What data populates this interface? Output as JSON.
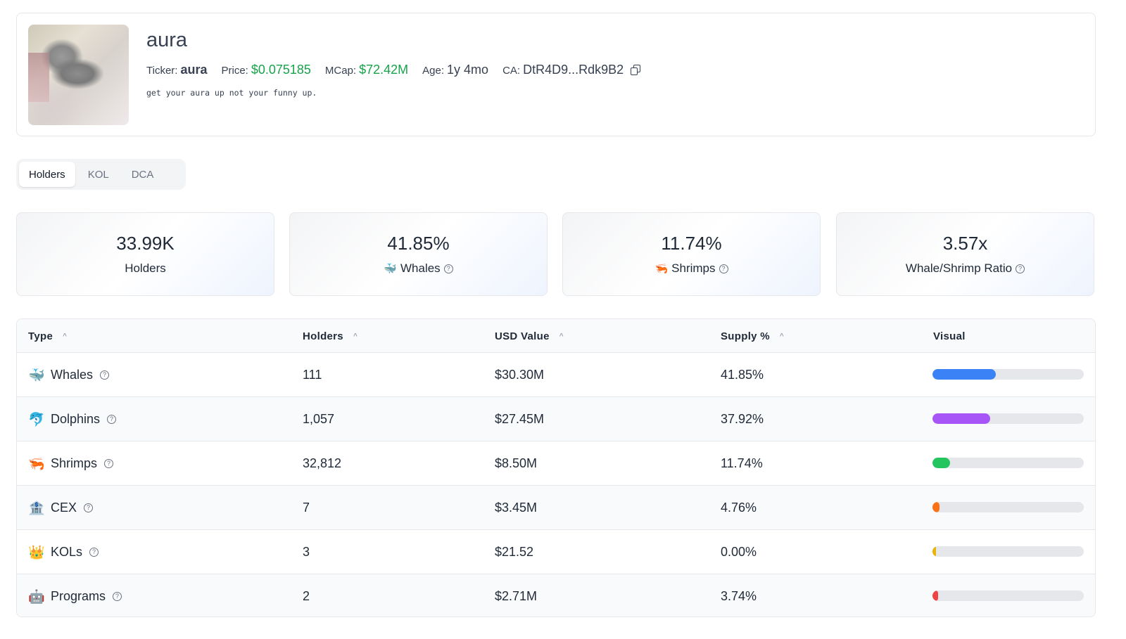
{
  "token": {
    "name": "aura",
    "ticker_label": "Ticker:",
    "ticker": "aura",
    "price_label": "Price:",
    "price": "$0.075185",
    "mcap_label": "MCap:",
    "mcap": "$72.42M",
    "age_label": "Age:",
    "age": "1y 4mo",
    "ca_label": "CA:",
    "ca": "DtR4D9...Rdk9B2",
    "description": "get your aura up not your funny up."
  },
  "tabs": [
    {
      "label": "Holders",
      "active": true
    },
    {
      "label": "KOL",
      "active": false
    },
    {
      "label": "DCA",
      "active": false
    }
  ],
  "stats": [
    {
      "value": "33.99K",
      "emoji": "",
      "label": "Holders",
      "help": false
    },
    {
      "value": "41.85%",
      "emoji": "🐳",
      "label": "Whales",
      "help": true
    },
    {
      "value": "11.74%",
      "emoji": "🦐",
      "label": "Shrimps",
      "help": true
    },
    {
      "value": "3.57x",
      "emoji": "",
      "label": "Whale/Shrimp Ratio",
      "help": true
    }
  ],
  "help_glyph": "?",
  "sort_glyph": "^",
  "table": {
    "headers": {
      "type": "Type",
      "holders": "Holders",
      "usd_value": "USD Value",
      "supply": "Supply %",
      "visual": "Visual"
    },
    "rows": [
      {
        "emoji": "🐳",
        "type": "Whales",
        "holders": "111",
        "usd_value": "$30.30M",
        "supply": "41.85%",
        "fill": 0.4185,
        "color": "#3b82f6"
      },
      {
        "emoji": "🐬",
        "type": "Dolphins",
        "holders": "1,057",
        "usd_value": "$27.45M",
        "supply": "37.92%",
        "fill": 0.3792,
        "color": "#a855f7"
      },
      {
        "emoji": "🦐",
        "type": "Shrimps",
        "holders": "32,812",
        "usd_value": "$8.50M",
        "supply": "11.74%",
        "fill": 0.1174,
        "color": "#22c55e"
      },
      {
        "emoji": "🏦",
        "type": "CEX",
        "holders": "7",
        "usd_value": "$3.45M",
        "supply": "4.76%",
        "fill": 0.0476,
        "color": "#f97316"
      },
      {
        "emoji": "👑",
        "type": "KOLs",
        "holders": "3",
        "usd_value": "$21.52",
        "supply": "0.00%",
        "fill": 0.0,
        "color": "#eab308"
      },
      {
        "emoji": "🤖",
        "type": "Programs",
        "holders": "2",
        "usd_value": "$2.71M",
        "supply": "3.74%",
        "fill": 0.0374,
        "color": "#ef4444"
      }
    ]
  }
}
